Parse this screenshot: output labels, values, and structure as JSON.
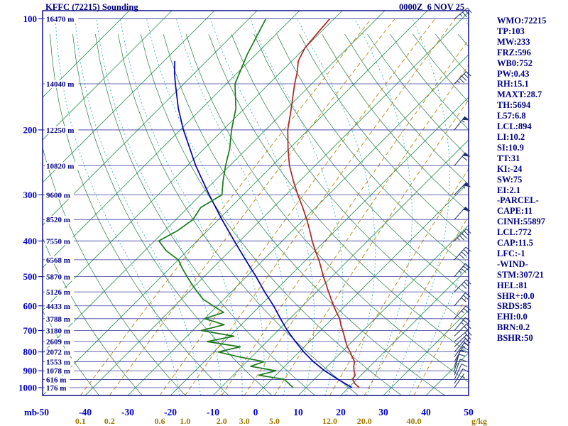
{
  "chart_data": {
    "type": "skewt-sounding",
    "title": "KFFC (72215) Sounding",
    "timestamp": "0000Z  6 NOV 25",
    "station": "KFFC",
    "wmo_id": "72215",
    "axes": {
      "pressure_unit_label": "mb",
      "mixing_ratio_unit_label": "g/kg",
      "pressure_ticks": [
        100,
        200,
        300,
        400,
        500,
        600,
        700,
        800,
        900,
        1000
      ],
      "pressure_range": [
        100,
        1050
      ],
      "temp_ticks": [
        -50,
        -40,
        -30,
        -20,
        -10,
        0,
        10,
        20,
        30,
        40,
        50
      ],
      "mixing_ratio_ticks": [
        0.1,
        0.2,
        0.6,
        1.0,
        2.0,
        3.0,
        5.0,
        12.0,
        20.0,
        40.0
      ]
    },
    "height_labels": [
      {
        "p": 100,
        "label": "16470 m"
      },
      {
        "p": 150,
        "label": "14040 m"
      },
      {
        "p": 200,
        "label": "12250 m"
      },
      {
        "p": 250,
        "label": "10820 m"
      },
      {
        "p": 300,
        "label": "9600 m"
      },
      {
        "p": 350,
        "label": "8520 m"
      },
      {
        "p": 400,
        "label": "7550 m"
      },
      {
        "p": 450,
        "label": "6568 m"
      },
      {
        "p": 500,
        "label": "5870 m"
      },
      {
        "p": 550,
        "label": "5126 m"
      },
      {
        "p": 600,
        "label": "4433 m"
      },
      {
        "p": 650,
        "label": "3788 m"
      },
      {
        "p": 700,
        "label": "3180 m"
      },
      {
        "p": 750,
        "label": "2609 m"
      },
      {
        "p": 800,
        "label": "2072 m"
      },
      {
        "p": 850,
        "label": "1553 m"
      },
      {
        "p": 900,
        "label": "1078 m"
      },
      {
        "p": 950,
        "label": "616 m"
      },
      {
        "p": 1000,
        "label": "176 m"
      }
    ],
    "series": {
      "temperature": {
        "name": "Temperature",
        "color": "#b22222",
        "points": [
          [
            1000,
            22.5
          ],
          [
            975,
            20.5
          ],
          [
            950,
            19
          ],
          [
            925,
            18.6
          ],
          [
            900,
            17.3
          ],
          [
            875,
            16.2
          ],
          [
            850,
            15.3
          ],
          [
            825,
            13.6
          ],
          [
            800,
            12
          ],
          [
            775,
            10.1
          ],
          [
            750,
            8.5
          ],
          [
            725,
            6.9
          ],
          [
            700,
            5.2
          ],
          [
            675,
            3.4
          ],
          [
            650,
            1.7
          ],
          [
            625,
            -0.5
          ],
          [
            600,
            -2.7
          ],
          [
            575,
            -4.9
          ],
          [
            550,
            -7.2
          ],
          [
            525,
            -9.5
          ],
          [
            500,
            -12
          ],
          [
            475,
            -14.4
          ],
          [
            450,
            -17
          ],
          [
            425,
            -20
          ],
          [
            400,
            -23
          ],
          [
            375,
            -26
          ],
          [
            350,
            -29.3
          ],
          [
            325,
            -33
          ],
          [
            300,
            -37.2
          ],
          [
            275,
            -41.5
          ],
          [
            250,
            -46
          ],
          [
            225,
            -50.3
          ],
          [
            200,
            -54.8
          ],
          [
            175,
            -59
          ],
          [
            150,
            -64
          ],
          [
            140,
            -66
          ],
          [
            130,
            -68.5
          ],
          [
            120,
            -70
          ],
          [
            110,
            -70.5
          ],
          [
            100,
            -71
          ]
        ]
      },
      "dewpoint": {
        "name": "Dewpoint",
        "color": "#1a7a1a",
        "points": [
          [
            1000,
            7
          ],
          [
            975,
            5
          ],
          [
            950,
            3
          ],
          [
            925,
            -4
          ],
          [
            900,
            -1
          ],
          [
            875,
            -8
          ],
          [
            850,
            -6
          ],
          [
            825,
            -13
          ],
          [
            800,
            -19
          ],
          [
            775,
            -15
          ],
          [
            750,
            -24
          ],
          [
            725,
            -19
          ],
          [
            700,
            -28
          ],
          [
            675,
            -24
          ],
          [
            650,
            -30
          ],
          [
            625,
            -27
          ],
          [
            600,
            -31
          ],
          [
            575,
            -35
          ],
          [
            550,
            -38
          ],
          [
            525,
            -41
          ],
          [
            500,
            -44
          ],
          [
            475,
            -47
          ],
          [
            450,
            -50
          ],
          [
            425,
            -55
          ],
          [
            400,
            -59
          ],
          [
            375,
            -57
          ],
          [
            350,
            -56
          ],
          [
            325,
            -57
          ],
          [
            300,
            -55
          ],
          [
            275,
            -58
          ],
          [
            250,
            -61
          ],
          [
            225,
            -64
          ],
          [
            200,
            -68
          ],
          [
            175,
            -72
          ],
          [
            150,
            -78
          ],
          [
            125,
            -82
          ],
          [
            100,
            -86
          ]
        ]
      },
      "parcel": {
        "name": "Parcel",
        "color": "#0000b3",
        "points": [
          [
            1000,
            20.8
          ],
          [
            950,
            15.6
          ],
          [
            900,
            10.4
          ],
          [
            850,
            5.6
          ],
          [
            800,
            1.1
          ],
          [
            750,
            -3.3
          ],
          [
            700,
            -7.8
          ],
          [
            650,
            -12.2
          ],
          [
            600,
            -16.8
          ],
          [
            550,
            -22.2
          ],
          [
            500,
            -27.8
          ],
          [
            450,
            -34.2
          ],
          [
            400,
            -41.3
          ],
          [
            350,
            -49.2
          ],
          [
            300,
            -58
          ],
          [
            250,
            -68
          ],
          [
            200,
            -79.3
          ],
          [
            175,
            -85.5
          ],
          [
            150,
            -92
          ],
          [
            140,
            -94.8
          ],
          [
            130,
            -97.5
          ]
        ]
      }
    },
    "winds": [
      [
        1000,
        315,
        5
      ],
      [
        975,
        320,
        8
      ],
      [
        950,
        325,
        10
      ],
      [
        925,
        330,
        10
      ],
      [
        900,
        335,
        12
      ],
      [
        875,
        330,
        12
      ],
      [
        850,
        320,
        15
      ],
      [
        825,
        315,
        15
      ],
      [
        800,
        310,
        18
      ],
      [
        775,
        305,
        20
      ],
      [
        750,
        300,
        20
      ],
      [
        725,
        305,
        22
      ],
      [
        700,
        310,
        25
      ],
      [
        650,
        308,
        25
      ],
      [
        600,
        310,
        28
      ],
      [
        550,
        306,
        30
      ],
      [
        500,
        310,
        35
      ],
      [
        450,
        308,
        40
      ],
      [
        400,
        305,
        45
      ],
      [
        350,
        308,
        50
      ],
      [
        300,
        306,
        55
      ],
      [
        250,
        310,
        60
      ],
      [
        200,
        312,
        55
      ],
      [
        150,
        306,
        45
      ],
      [
        100,
        300,
        35
      ]
    ],
    "colors": {
      "frame": "#000080",
      "pressure_lines": "#3a3aa0",
      "isotherms": "#2a9150",
      "dry_adiabats": "#237a44",
      "moist_adiabats": "#2ab0b0",
      "mixing_ratio": "#b8860b",
      "pressure_labels": "#0000cc",
      "temp_labels": "#0000cc",
      "mixing_labels": "#a07800",
      "height_labels": "#000080",
      "wind_barbs": "#1c2e6b"
    }
  },
  "indices_panel": {
    "lines": [
      "WMO:72215",
      "TP:103",
      "MW:233",
      "FRZ:596",
      "WB0:752",
      "PW:0.43",
      "RH:15.1",
      "MAXT:28.7",
      "TH:5694",
      "L57:6.8",
      "LCL:894",
      "LI:10.2",
      "SI:10.9",
      "TT:31",
      "KI:-24",
      "SW:75",
      "EI:2.1",
      "-PARCEL-",
      "CAPE:11",
      "CINH:55897",
      "LCL:772",
      "CAP:11.5",
      "LFC:-1",
      "-WIND-",
      "STM:307/21",
      "HEL:81",
      "SHR+:0.0",
      "SRDS:85",
      "EHI:0.0",
      "BRN:0.2",
      "BSHR:50"
    ]
  }
}
